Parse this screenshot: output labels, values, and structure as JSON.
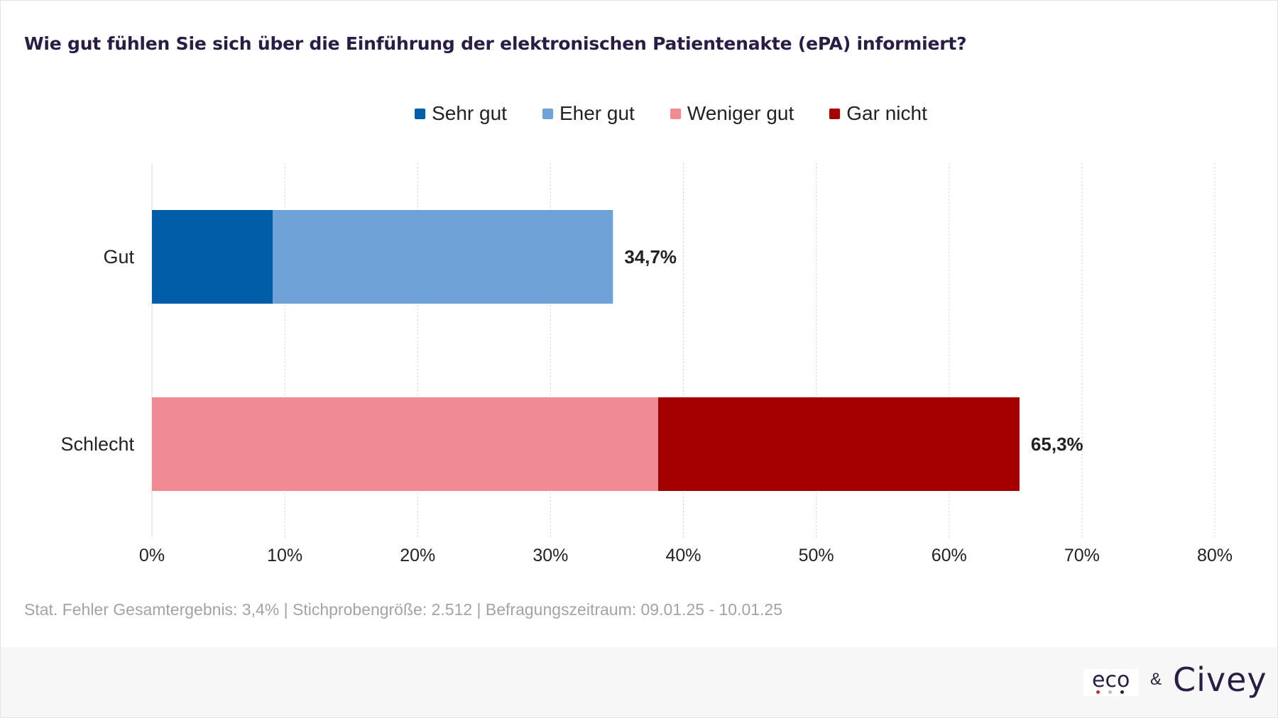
{
  "title": "Wie gut fühlen Sie sich über die Einführung der elektronischen Patientenakte (ePA) informiert?",
  "legend": [
    {
      "label": "Sehr gut",
      "color": "#005ea8"
    },
    {
      "label": "Eher gut",
      "color": "#6fa3d7"
    },
    {
      "label": "Weniger gut",
      "color": "#f08b93"
    },
    {
      "label": "Gar nicht",
      "color": "#a50000"
    }
  ],
  "chart_data": {
    "type": "bar",
    "orientation": "horizontal",
    "stacked": true,
    "categories": [
      "Gut",
      "Schlecht"
    ],
    "series": [
      {
        "name": "Sehr gut",
        "values": [
          9.1,
          0
        ],
        "color": "#005ea8"
      },
      {
        "name": "Eher gut",
        "values": [
          25.6,
          0
        ],
        "color": "#6fa3d7"
      },
      {
        "name": "Weniger gut",
        "values": [
          0,
          38.1
        ],
        "color": "#f08b93"
      },
      {
        "name": "Gar nicht",
        "values": [
          0,
          27.2
        ],
        "color": "#a50000"
      }
    ],
    "totals": [
      34.7,
      65.3
    ],
    "total_labels": [
      "34,7%",
      "65,3%"
    ],
    "xlim": [
      0,
      80
    ],
    "xticks": [
      0,
      10,
      20,
      30,
      40,
      50,
      60,
      70,
      80
    ],
    "xtick_labels": [
      "0%",
      "10%",
      "20%",
      "30%",
      "40%",
      "50%",
      "60%",
      "70%",
      "80%"
    ],
    "grid": true,
    "legend_position": "top"
  },
  "footnote": "Stat. Fehler Gesamtergebnis: 3,4% | Stichprobengröße: 2.512 | Befragungszeitraum: 09.01.25 - 10.01.25",
  "logos": {
    "eco": "eco",
    "amp": "&",
    "civey": "Civey"
  },
  "colors": {
    "title": "#2a1d45",
    "eco_dot_red": "#d7232d",
    "eco_dot_grey": "#bdbdbd"
  }
}
